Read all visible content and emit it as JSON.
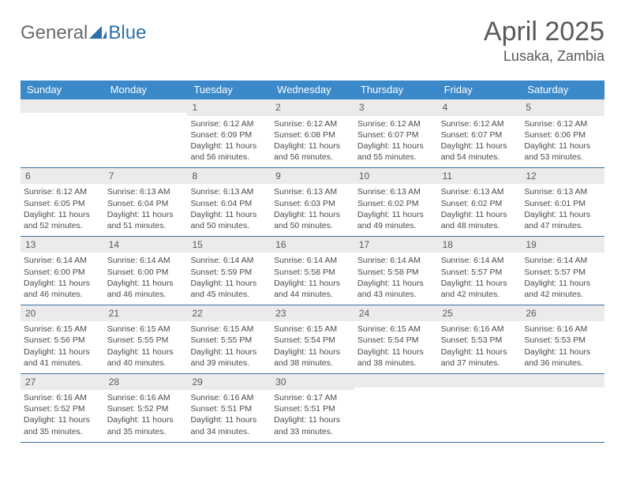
{
  "colors": {
    "header_bg": "#3b89c9",
    "header_text": "#ffffff",
    "daynum_bg": "#ebebeb",
    "text": "#4a4a4a",
    "title": "#5a5a5a",
    "logo_gray": "#6a6a6a",
    "logo_blue": "#2f6fa8",
    "row_border": "#3b6fa0"
  },
  "logo": {
    "part1": "General",
    "part2": "Blue"
  },
  "title": "April 2025",
  "location": "Lusaka, Zambia",
  "weekdays": [
    "Sunday",
    "Monday",
    "Tuesday",
    "Wednesday",
    "Thursday",
    "Friday",
    "Saturday"
  ],
  "weeks": [
    [
      {
        "n": "",
        "empty": true
      },
      {
        "n": "",
        "empty": true
      },
      {
        "n": "1",
        "sunrise": "Sunrise: 6:12 AM",
        "sunset": "Sunset: 6:09 PM",
        "daylight": "Daylight: 11 hours and 56 minutes."
      },
      {
        "n": "2",
        "sunrise": "Sunrise: 6:12 AM",
        "sunset": "Sunset: 6:08 PM",
        "daylight": "Daylight: 11 hours and 56 minutes."
      },
      {
        "n": "3",
        "sunrise": "Sunrise: 6:12 AM",
        "sunset": "Sunset: 6:07 PM",
        "daylight": "Daylight: 11 hours and 55 minutes."
      },
      {
        "n": "4",
        "sunrise": "Sunrise: 6:12 AM",
        "sunset": "Sunset: 6:07 PM",
        "daylight": "Daylight: 11 hours and 54 minutes."
      },
      {
        "n": "5",
        "sunrise": "Sunrise: 6:12 AM",
        "sunset": "Sunset: 6:06 PM",
        "daylight": "Daylight: 11 hours and 53 minutes."
      }
    ],
    [
      {
        "n": "6",
        "sunrise": "Sunrise: 6:12 AM",
        "sunset": "Sunset: 6:05 PM",
        "daylight": "Daylight: 11 hours and 52 minutes."
      },
      {
        "n": "7",
        "sunrise": "Sunrise: 6:13 AM",
        "sunset": "Sunset: 6:04 PM",
        "daylight": "Daylight: 11 hours and 51 minutes."
      },
      {
        "n": "8",
        "sunrise": "Sunrise: 6:13 AM",
        "sunset": "Sunset: 6:04 PM",
        "daylight": "Daylight: 11 hours and 50 minutes."
      },
      {
        "n": "9",
        "sunrise": "Sunrise: 6:13 AM",
        "sunset": "Sunset: 6:03 PM",
        "daylight": "Daylight: 11 hours and 50 minutes."
      },
      {
        "n": "10",
        "sunrise": "Sunrise: 6:13 AM",
        "sunset": "Sunset: 6:02 PM",
        "daylight": "Daylight: 11 hours and 49 minutes."
      },
      {
        "n": "11",
        "sunrise": "Sunrise: 6:13 AM",
        "sunset": "Sunset: 6:02 PM",
        "daylight": "Daylight: 11 hours and 48 minutes."
      },
      {
        "n": "12",
        "sunrise": "Sunrise: 6:13 AM",
        "sunset": "Sunset: 6:01 PM",
        "daylight": "Daylight: 11 hours and 47 minutes."
      }
    ],
    [
      {
        "n": "13",
        "sunrise": "Sunrise: 6:14 AM",
        "sunset": "Sunset: 6:00 PM",
        "daylight": "Daylight: 11 hours and 46 minutes."
      },
      {
        "n": "14",
        "sunrise": "Sunrise: 6:14 AM",
        "sunset": "Sunset: 6:00 PM",
        "daylight": "Daylight: 11 hours and 46 minutes."
      },
      {
        "n": "15",
        "sunrise": "Sunrise: 6:14 AM",
        "sunset": "Sunset: 5:59 PM",
        "daylight": "Daylight: 11 hours and 45 minutes."
      },
      {
        "n": "16",
        "sunrise": "Sunrise: 6:14 AM",
        "sunset": "Sunset: 5:58 PM",
        "daylight": "Daylight: 11 hours and 44 minutes."
      },
      {
        "n": "17",
        "sunrise": "Sunrise: 6:14 AM",
        "sunset": "Sunset: 5:58 PM",
        "daylight": "Daylight: 11 hours and 43 minutes."
      },
      {
        "n": "18",
        "sunrise": "Sunrise: 6:14 AM",
        "sunset": "Sunset: 5:57 PM",
        "daylight": "Daylight: 11 hours and 42 minutes."
      },
      {
        "n": "19",
        "sunrise": "Sunrise: 6:14 AM",
        "sunset": "Sunset: 5:57 PM",
        "daylight": "Daylight: 11 hours and 42 minutes."
      }
    ],
    [
      {
        "n": "20",
        "sunrise": "Sunrise: 6:15 AM",
        "sunset": "Sunset: 5:56 PM",
        "daylight": "Daylight: 11 hours and 41 minutes."
      },
      {
        "n": "21",
        "sunrise": "Sunrise: 6:15 AM",
        "sunset": "Sunset: 5:55 PM",
        "daylight": "Daylight: 11 hours and 40 minutes."
      },
      {
        "n": "22",
        "sunrise": "Sunrise: 6:15 AM",
        "sunset": "Sunset: 5:55 PM",
        "daylight": "Daylight: 11 hours and 39 minutes."
      },
      {
        "n": "23",
        "sunrise": "Sunrise: 6:15 AM",
        "sunset": "Sunset: 5:54 PM",
        "daylight": "Daylight: 11 hours and 38 minutes."
      },
      {
        "n": "24",
        "sunrise": "Sunrise: 6:15 AM",
        "sunset": "Sunset: 5:54 PM",
        "daylight": "Daylight: 11 hours and 38 minutes."
      },
      {
        "n": "25",
        "sunrise": "Sunrise: 6:16 AM",
        "sunset": "Sunset: 5:53 PM",
        "daylight": "Daylight: 11 hours and 37 minutes."
      },
      {
        "n": "26",
        "sunrise": "Sunrise: 6:16 AM",
        "sunset": "Sunset: 5:53 PM",
        "daylight": "Daylight: 11 hours and 36 minutes."
      }
    ],
    [
      {
        "n": "27",
        "sunrise": "Sunrise: 6:16 AM",
        "sunset": "Sunset: 5:52 PM",
        "daylight": "Daylight: 11 hours and 35 minutes."
      },
      {
        "n": "28",
        "sunrise": "Sunrise: 6:16 AM",
        "sunset": "Sunset: 5:52 PM",
        "daylight": "Daylight: 11 hours and 35 minutes."
      },
      {
        "n": "29",
        "sunrise": "Sunrise: 6:16 AM",
        "sunset": "Sunset: 5:51 PM",
        "daylight": "Daylight: 11 hours and 34 minutes."
      },
      {
        "n": "30",
        "sunrise": "Sunrise: 6:17 AM",
        "sunset": "Sunset: 5:51 PM",
        "daylight": "Daylight: 11 hours and 33 minutes."
      },
      {
        "n": "",
        "empty": true
      },
      {
        "n": "",
        "empty": true
      },
      {
        "n": "",
        "empty": true
      }
    ]
  ]
}
